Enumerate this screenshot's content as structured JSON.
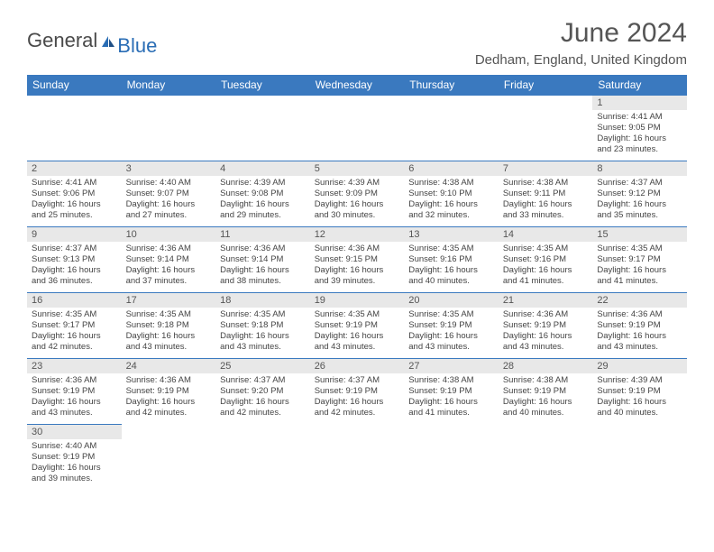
{
  "logo": {
    "general": "General",
    "blue": "Blue",
    "icon_color": "#2a6db5"
  },
  "title": "June 2024",
  "location": "Dedham, England, United Kingdom",
  "colors": {
    "header_bg": "#3a79bf",
    "header_text": "#ffffff",
    "daynum_bg": "#e8e8e8",
    "border": "#3a79bf"
  },
  "day_headers": [
    "Sunday",
    "Monday",
    "Tuesday",
    "Wednesday",
    "Thursday",
    "Friday",
    "Saturday"
  ],
  "weeks": [
    [
      null,
      null,
      null,
      null,
      null,
      null,
      {
        "n": "1",
        "sunrise": "4:41 AM",
        "sunset": "9:05 PM",
        "daylight": "16 hours and 23 minutes."
      }
    ],
    [
      {
        "n": "2",
        "sunrise": "4:41 AM",
        "sunset": "9:06 PM",
        "daylight": "16 hours and 25 minutes."
      },
      {
        "n": "3",
        "sunrise": "4:40 AM",
        "sunset": "9:07 PM",
        "daylight": "16 hours and 27 minutes."
      },
      {
        "n": "4",
        "sunrise": "4:39 AM",
        "sunset": "9:08 PM",
        "daylight": "16 hours and 29 minutes."
      },
      {
        "n": "5",
        "sunrise": "4:39 AM",
        "sunset": "9:09 PM",
        "daylight": "16 hours and 30 minutes."
      },
      {
        "n": "6",
        "sunrise": "4:38 AM",
        "sunset": "9:10 PM",
        "daylight": "16 hours and 32 minutes."
      },
      {
        "n": "7",
        "sunrise": "4:38 AM",
        "sunset": "9:11 PM",
        "daylight": "16 hours and 33 minutes."
      },
      {
        "n": "8",
        "sunrise": "4:37 AM",
        "sunset": "9:12 PM",
        "daylight": "16 hours and 35 minutes."
      }
    ],
    [
      {
        "n": "9",
        "sunrise": "4:37 AM",
        "sunset": "9:13 PM",
        "daylight": "16 hours and 36 minutes."
      },
      {
        "n": "10",
        "sunrise": "4:36 AM",
        "sunset": "9:14 PM",
        "daylight": "16 hours and 37 minutes."
      },
      {
        "n": "11",
        "sunrise": "4:36 AM",
        "sunset": "9:14 PM",
        "daylight": "16 hours and 38 minutes."
      },
      {
        "n": "12",
        "sunrise": "4:36 AM",
        "sunset": "9:15 PM",
        "daylight": "16 hours and 39 minutes."
      },
      {
        "n": "13",
        "sunrise": "4:35 AM",
        "sunset": "9:16 PM",
        "daylight": "16 hours and 40 minutes."
      },
      {
        "n": "14",
        "sunrise": "4:35 AM",
        "sunset": "9:16 PM",
        "daylight": "16 hours and 41 minutes."
      },
      {
        "n": "15",
        "sunrise": "4:35 AM",
        "sunset": "9:17 PM",
        "daylight": "16 hours and 41 minutes."
      }
    ],
    [
      {
        "n": "16",
        "sunrise": "4:35 AM",
        "sunset": "9:17 PM",
        "daylight": "16 hours and 42 minutes."
      },
      {
        "n": "17",
        "sunrise": "4:35 AM",
        "sunset": "9:18 PM",
        "daylight": "16 hours and 43 minutes."
      },
      {
        "n": "18",
        "sunrise": "4:35 AM",
        "sunset": "9:18 PM",
        "daylight": "16 hours and 43 minutes."
      },
      {
        "n": "19",
        "sunrise": "4:35 AM",
        "sunset": "9:19 PM",
        "daylight": "16 hours and 43 minutes."
      },
      {
        "n": "20",
        "sunrise": "4:35 AM",
        "sunset": "9:19 PM",
        "daylight": "16 hours and 43 minutes."
      },
      {
        "n": "21",
        "sunrise": "4:36 AM",
        "sunset": "9:19 PM",
        "daylight": "16 hours and 43 minutes."
      },
      {
        "n": "22",
        "sunrise": "4:36 AM",
        "sunset": "9:19 PM",
        "daylight": "16 hours and 43 minutes."
      }
    ],
    [
      {
        "n": "23",
        "sunrise": "4:36 AM",
        "sunset": "9:19 PM",
        "daylight": "16 hours and 43 minutes."
      },
      {
        "n": "24",
        "sunrise": "4:36 AM",
        "sunset": "9:19 PM",
        "daylight": "16 hours and 42 minutes."
      },
      {
        "n": "25",
        "sunrise": "4:37 AM",
        "sunset": "9:20 PM",
        "daylight": "16 hours and 42 minutes."
      },
      {
        "n": "26",
        "sunrise": "4:37 AM",
        "sunset": "9:19 PM",
        "daylight": "16 hours and 42 minutes."
      },
      {
        "n": "27",
        "sunrise": "4:38 AM",
        "sunset": "9:19 PM",
        "daylight": "16 hours and 41 minutes."
      },
      {
        "n": "28",
        "sunrise": "4:38 AM",
        "sunset": "9:19 PM",
        "daylight": "16 hours and 40 minutes."
      },
      {
        "n": "29",
        "sunrise": "4:39 AM",
        "sunset": "9:19 PM",
        "daylight": "16 hours and 40 minutes."
      }
    ],
    [
      {
        "n": "30",
        "sunrise": "4:40 AM",
        "sunset": "9:19 PM",
        "daylight": "16 hours and 39 minutes."
      },
      null,
      null,
      null,
      null,
      null,
      null
    ]
  ],
  "labels": {
    "sunrise": "Sunrise:",
    "sunset": "Sunset:",
    "daylight": "Daylight:"
  }
}
